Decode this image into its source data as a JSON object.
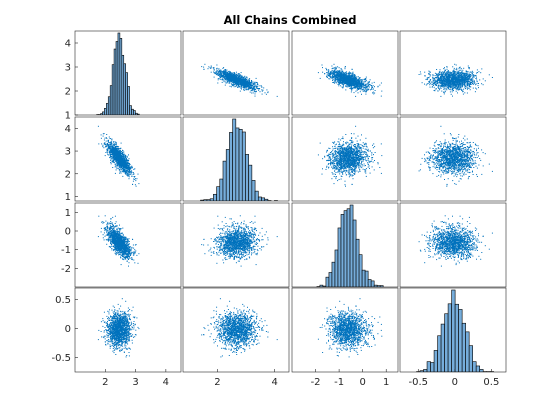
{
  "chart_data": {
    "type": "scatter-matrix",
    "title": "All Chains Combined",
    "n_vars": 4,
    "variables": [
      {
        "range": [
          1.0,
          4.5
        ],
        "mean": 2.45,
        "sd": 0.2,
        "y_ticks": [
          1,
          2,
          3,
          4
        ],
        "y_tick_labels": [
          "1",
          "2",
          "3",
          "4"
        ],
        "x_ticks": [
          2,
          3,
          4
        ],
        "x_tick_labels": [
          "2",
          "3",
          "4"
        ]
      },
      {
        "range": [
          0.8,
          4.5
        ],
        "mean": 2.7,
        "sd": 0.35,
        "y_ticks": [
          1,
          2,
          3,
          4
        ],
        "y_tick_labels": [
          "1",
          "2",
          "3",
          "4"
        ],
        "x_ticks": [
          2,
          4
        ],
        "x_tick_labels": [
          "2",
          "4"
        ]
      },
      {
        "range": [
          -3.0,
          1.5
        ],
        "mean": -0.6,
        "sd": 0.4,
        "y_ticks": [
          -2,
          -1,
          0,
          1
        ],
        "y_tick_labels": [
          "-2",
          "-1",
          "0",
          "1"
        ],
        "x_ticks": [
          -2,
          -1,
          0,
          1
        ],
        "x_tick_labels": [
          "-2",
          "-1",
          "0",
          "1"
        ]
      },
      {
        "range": [
          -0.75,
          0.7
        ],
        "mean": -0.02,
        "sd": 0.15,
        "y_ticks": [
          -0.5,
          0,
          0.5
        ],
        "y_tick_labels": [
          "-0.5",
          "0",
          "0.5"
        ],
        "x_ticks": [
          -0.5,
          0,
          0.5
        ],
        "x_tick_labels": [
          "-0.5",
          "0",
          "0.5"
        ]
      }
    ],
    "correlations": [
      [
        1.0,
        -0.8,
        -0.7,
        0.0
      ],
      [
        -0.8,
        1.0,
        0.1,
        0.0
      ],
      [
        -0.7,
        0.1,
        1.0,
        0.0
      ],
      [
        0.0,
        0.0,
        0.0,
        1.0
      ]
    ],
    "histogram_bins": 25,
    "marker_color": "#0072BD",
    "bar_fill": "#76ADDB",
    "bar_edge": "#000000"
  }
}
